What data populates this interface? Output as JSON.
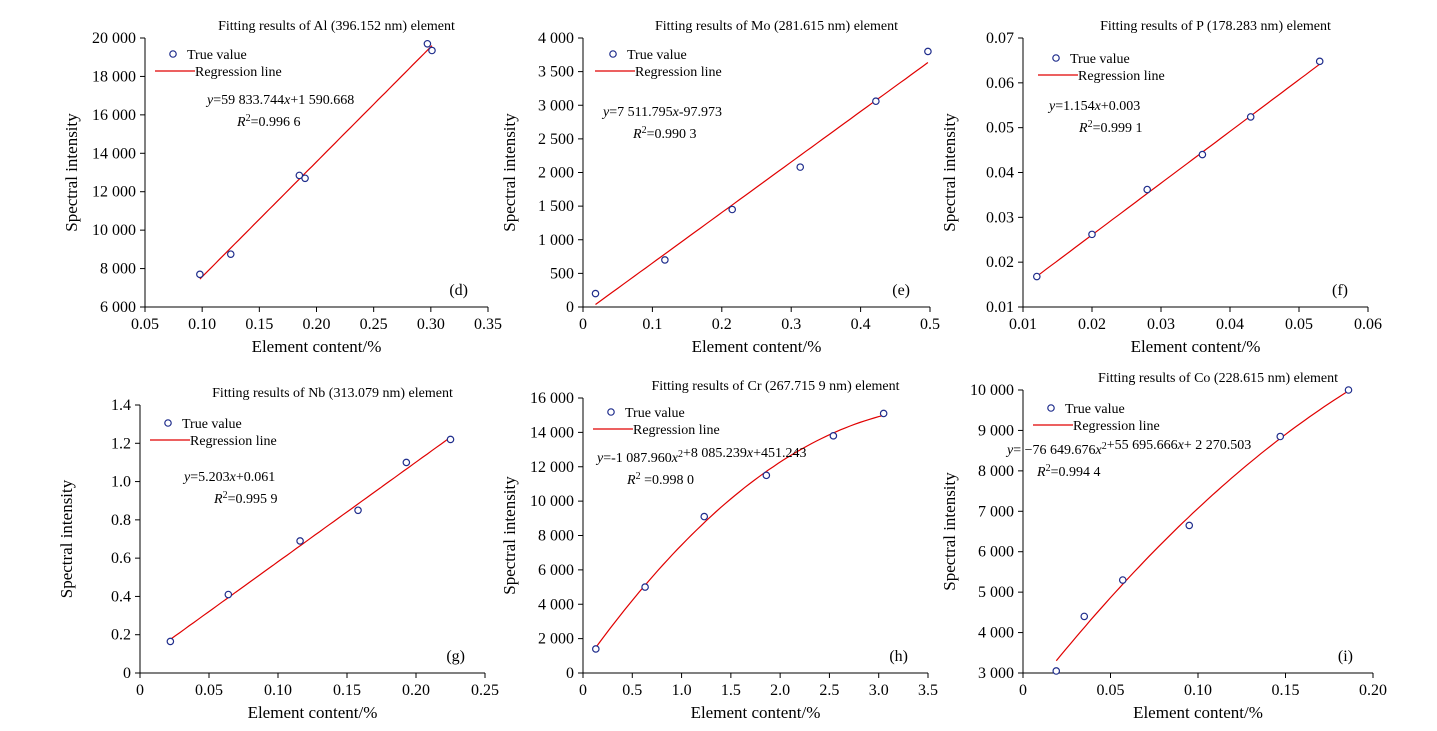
{
  "colors": {
    "points": "#1f2d8c",
    "regression_line": "#e00000",
    "axis": "#000000"
  },
  "chart_data": [
    {
      "type": "scatter",
      "panel_label": "(d)",
      "title": "Fitting results of Al (396.152 nm) element",
      "xlabel": "Element content/%",
      "ylabel": "Spectral intensity",
      "xlim": [
        0.05,
        0.35
      ],
      "ylim": [
        6000,
        20000
      ],
      "x_ticks": [
        0.05,
        0.1,
        0.15,
        0.2,
        0.25,
        0.3,
        0.35
      ],
      "x_tick_labels": [
        "0.05",
        "0.10",
        "0.15",
        "0.20",
        "0.25",
        "0.30",
        "0.35"
      ],
      "y_ticks": [
        6000,
        8000,
        10000,
        12000,
        14000,
        16000,
        18000,
        20000
      ],
      "y_tick_labels": [
        "6 000",
        "8 000",
        "10 000",
        "12 000",
        "14 000",
        "16 000",
        "18 000",
        "20 000"
      ],
      "legend": [
        "True value",
        "Regression line"
      ],
      "legend_position": "top-left",
      "equation": "=59 833.744x+1 590.668",
      "r_squared": "=0.996 6",
      "series": [
        {
          "name": "True value",
          "x": [
            0.098,
            0.125,
            0.185,
            0.19,
            0.297,
            0.301
          ],
          "y": [
            7700,
            8750,
            12850,
            12700,
            19700,
            19350
          ]
        }
      ],
      "fit": {
        "kind": "linear",
        "coef": [
          59833.744,
          1590.668
        ],
        "x_range": [
          0.098,
          0.301
        ]
      }
    },
    {
      "type": "scatter",
      "panel_label": "(e)",
      "title": "Fitting results of Mo (281.615 nm) element",
      "xlabel": "Element content/%",
      "ylabel": "Spectral intensity",
      "xlim": [
        0,
        0.5
      ],
      "ylim": [
        0,
        4000
      ],
      "x_ticks": [
        0,
        0.1,
        0.2,
        0.3,
        0.4,
        0.5
      ],
      "x_tick_labels": [
        "0",
        "0.1",
        "0.2",
        "0.3",
        "0.4",
        "0.5"
      ],
      "y_ticks": [
        0,
        500,
        1000,
        1500,
        2000,
        2500,
        3000,
        3500,
        4000
      ],
      "y_tick_labels": [
        "0",
        "500",
        "1 000",
        "1 500",
        "2 000",
        "2 500",
        "3 000",
        "3 500",
        "4 000"
      ],
      "legend": [
        "True value",
        "Regression line"
      ],
      "legend_position": "top-left",
      "equation": "=7 511.795x-97.973",
      "r_squared": "=0.990 3",
      "series": [
        {
          "name": "True value",
          "x": [
            0.018,
            0.118,
            0.215,
            0.313,
            0.422,
            0.497
          ],
          "y": [
            200,
            700,
            1450,
            2080,
            3060,
            3800
          ]
        }
      ],
      "fit": {
        "kind": "linear",
        "coef": [
          7511.795,
          -97.973
        ],
        "x_range": [
          0.018,
          0.497
        ]
      }
    },
    {
      "type": "scatter",
      "panel_label": "(f)",
      "title": "Fitting results of P (178.283 nm) element",
      "xlabel": "Element content/%",
      "ylabel": "Spectral intensity",
      "xlim": [
        0.01,
        0.06
      ],
      "ylim": [
        0.01,
        0.07
      ],
      "x_ticks": [
        0.01,
        0.02,
        0.03,
        0.04,
        0.05,
        0.06
      ],
      "x_tick_labels": [
        "0.01",
        "0.02",
        "0.03",
        "0.04",
        "0.05",
        "0.06"
      ],
      "y_ticks": [
        0.01,
        0.02,
        0.03,
        0.04,
        0.05,
        0.06,
        0.07
      ],
      "y_tick_labels": [
        "0.01",
        "0.02",
        "0.03",
        "0.04",
        "0.05",
        "0.06",
        "0.07"
      ],
      "legend": [
        "True value",
        "Regression line"
      ],
      "legend_position": "top-left",
      "equation": "=1.154x+0.003",
      "r_squared": "=0.999 1",
      "series": [
        {
          "name": "True value",
          "x": [
            0.012,
            0.02,
            0.028,
            0.036,
            0.043,
            0.053
          ],
          "y": [
            0.0168,
            0.0262,
            0.0362,
            0.044,
            0.0524,
            0.0648
          ]
        }
      ],
      "fit": {
        "kind": "linear",
        "coef": [
          1.154,
          0.003
        ],
        "x_range": [
          0.012,
          0.053
        ]
      }
    },
    {
      "type": "scatter",
      "panel_label": "(g)",
      "title": "Fitting results of Nb (313.079 nm) element",
      "xlabel": "Element content/%",
      "ylabel": "Spectral intensity",
      "xlim": [
        0,
        0.25
      ],
      "ylim": [
        0,
        1.4
      ],
      "x_ticks": [
        0,
        0.05,
        0.1,
        0.15,
        0.2,
        0.25
      ],
      "x_tick_labels": [
        "0",
        "0.05",
        "0.10",
        "0.15",
        "0.20",
        "0.25"
      ],
      "y_ticks": [
        0,
        0.2,
        0.4,
        0.6,
        0.8,
        1.0,
        1.2,
        1.4
      ],
      "y_tick_labels": [
        "0",
        "0.2",
        "0.4",
        "0.6",
        "0.8",
        "1.0",
        "1.2",
        "1.4"
      ],
      "legend": [
        "True value",
        "Regression line"
      ],
      "legend_position": "top-left",
      "equation": "=5.203x+0.061",
      "r_squared": "=0.995 9",
      "series": [
        {
          "name": "True value",
          "x": [
            0.022,
            0.064,
            0.116,
            0.158,
            0.193,
            0.225
          ],
          "y": [
            0.165,
            0.41,
            0.69,
            0.85,
            1.1,
            1.22
          ]
        }
      ],
      "fit": {
        "kind": "linear",
        "coef": [
          5.203,
          0.061
        ],
        "x_range": [
          0.022,
          0.225
        ]
      }
    },
    {
      "type": "scatter",
      "panel_label": "(h)",
      "title": "Fitting results of Cr (267.715 9 nm) element",
      "xlabel": "Element content/%",
      "ylabel": "Spectral intensity",
      "xlim": [
        0,
        3.5
      ],
      "ylim": [
        0,
        16000
      ],
      "x_ticks": [
        0,
        0.5,
        1.0,
        1.5,
        2.0,
        2.5,
        3.0,
        3.5
      ],
      "x_tick_labels": [
        "0",
        "0.5",
        "1.0",
        "1.5",
        "2.0",
        "2.5",
        "3.0",
        "3.5"
      ],
      "y_ticks": [
        0,
        2000,
        4000,
        6000,
        8000,
        10000,
        12000,
        14000,
        16000
      ],
      "y_tick_labels": [
        "0",
        "2 000",
        "4 000",
        "6 000",
        "8 000",
        "10 000",
        "12 000",
        "14 000",
        "16 000"
      ],
      "legend": [
        "True value",
        "Regression line"
      ],
      "legend_position": "top-left",
      "equation": "=-1 087.960x²+8 085.239x+451.243",
      "r_squared": " =0.998 0",
      "series": [
        {
          "name": "True value",
          "x": [
            0.13,
            0.63,
            1.23,
            1.86,
            2.54,
            3.05
          ],
          "y": [
            1400,
            5000,
            9100,
            11500,
            13800,
            15100
          ]
        }
      ],
      "fit": {
        "kind": "quadratic",
        "coef": [
          -1087.96,
          8085.239,
          451.243
        ],
        "x_range": [
          0.13,
          3.05
        ]
      }
    },
    {
      "type": "scatter",
      "panel_label": "(i)",
      "title": "Fitting results of Co (228.615 nm) element",
      "xlabel": "Element content/%",
      "ylabel": "Spectral intensity",
      "xlim": [
        0,
        0.2
      ],
      "ylim": [
        3000,
        10000
      ],
      "x_ticks": [
        0,
        0.05,
        0.1,
        0.15,
        0.2
      ],
      "x_tick_labels": [
        "0",
        "0.05",
        "0.10",
        "0.15",
        "0.20"
      ],
      "y_ticks": [
        3000,
        4000,
        5000,
        6000,
        7000,
        8000,
        9000,
        10000
      ],
      "y_tick_labels": [
        "3 000",
        "4 000",
        "5 000",
        "6 000",
        "7 000",
        "8 000",
        "9 000",
        "10 000"
      ],
      "legend": [
        "True value",
        "Regression line"
      ],
      "legend_position": "top-left",
      "equation": "= −76 649.676x²+55 695.666x+ 2 270.503",
      "r_squared": "=0.994 4",
      "series": [
        {
          "name": "True value",
          "x": [
            0.019,
            0.035,
            0.057,
            0.095,
            0.147,
            0.186
          ],
          "y": [
            3050,
            4400,
            5300,
            6650,
            8850,
            10000
          ]
        }
      ],
      "fit": {
        "kind": "quadratic",
        "coef": [
          -76649.676,
          55695.666,
          2270.503
        ],
        "x_range": [
          0.019,
          0.186
        ]
      }
    }
  ]
}
